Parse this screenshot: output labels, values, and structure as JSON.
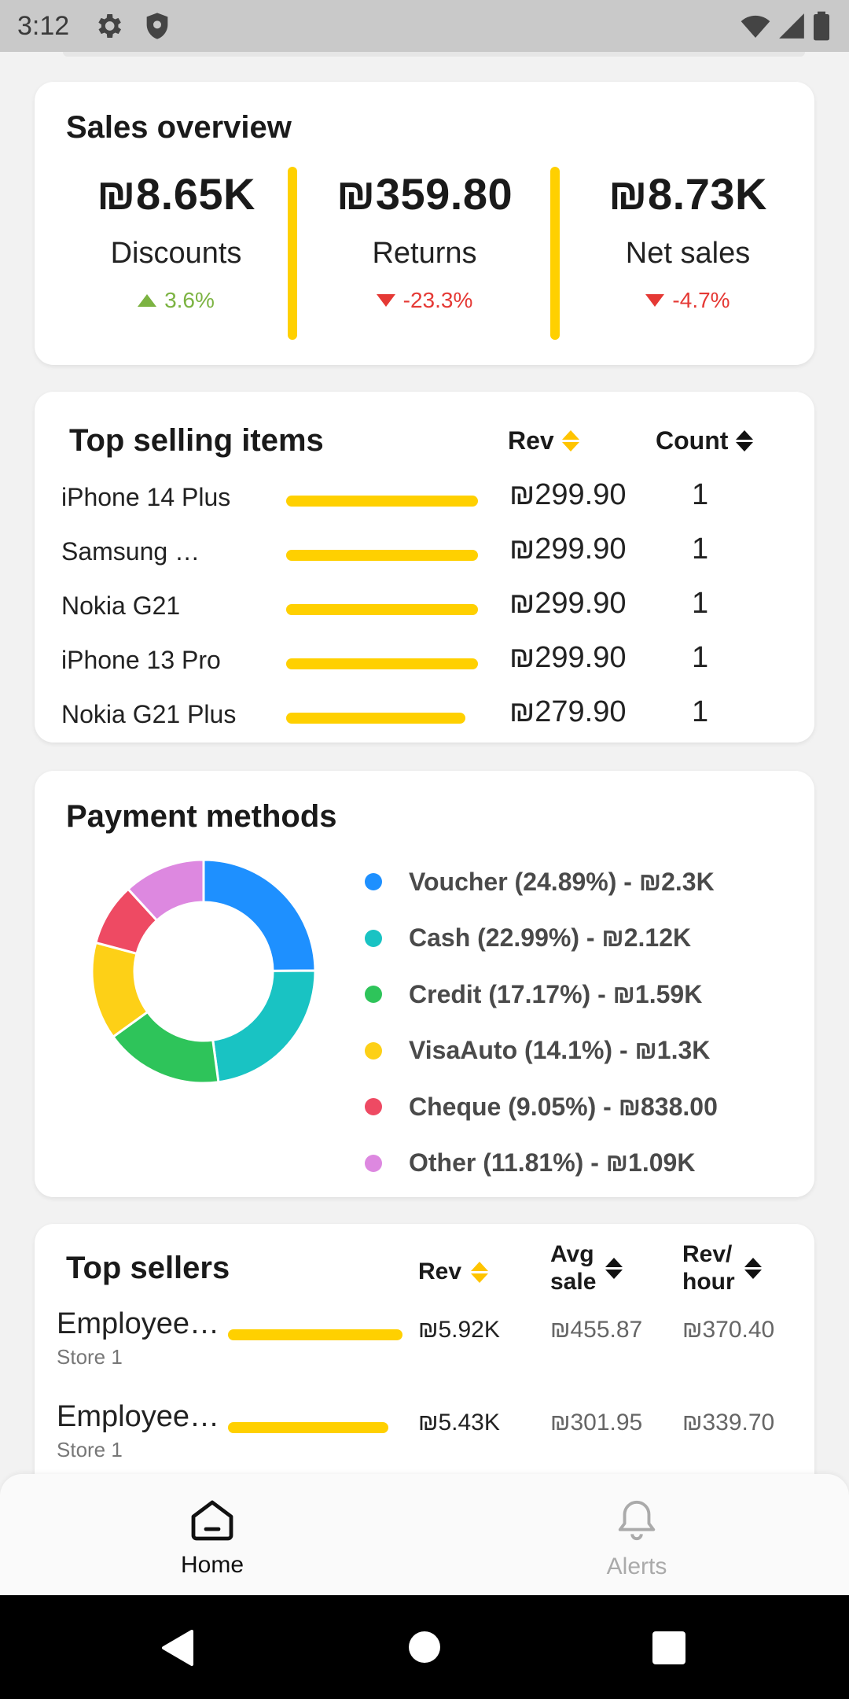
{
  "status_bar": {
    "time": "3:12",
    "icons": [
      "gear-icon",
      "shield-icon",
      "wifi-icon",
      "signal-icon",
      "battery-icon"
    ]
  },
  "sales_overview": {
    "title": "Sales overview",
    "metrics": [
      {
        "value": "₪8.65K",
        "label": "Discounts",
        "change": "3.6%",
        "direction": "up"
      },
      {
        "value": "₪359.80",
        "label": "Returns",
        "change": "-23.3%",
        "direction": "down"
      },
      {
        "value": "₪8.73K",
        "label": "Net sales",
        "change": "-4.7%",
        "direction": "down"
      }
    ]
  },
  "top_selling": {
    "title": "Top selling items",
    "col_rev": "Rev",
    "col_count": "Count",
    "items": [
      {
        "name": "iPhone 14 Plus",
        "rev": "₪299.90",
        "count": "1",
        "share": 1.0
      },
      {
        "name": "Samsung …",
        "rev": "₪299.90",
        "count": "1",
        "share": 1.0
      },
      {
        "name": "Nokia G21",
        "rev": "₪299.90",
        "count": "1",
        "share": 1.0
      },
      {
        "name": "iPhone 13 Pro",
        "rev": "₪299.90",
        "count": "1",
        "share": 1.0
      },
      {
        "name": "Nokia G21 Plus",
        "rev": "₪279.90",
        "count": "1",
        "share": 0.933
      }
    ]
  },
  "payment_methods": {
    "title": "Payment methods",
    "methods": [
      {
        "label": "Voucher (24.89%) - ₪2.3K",
        "percent": 24.89,
        "color": "#1e90ff"
      },
      {
        "label": "Cash (22.99%) - ₪2.12K",
        "percent": 22.99,
        "color": "#19c3c3"
      },
      {
        "label": "Credit (17.17%) - ₪1.59K",
        "percent": 17.17,
        "color": "#2ec45a"
      },
      {
        "label": "VisaAuto (14.1%) - ₪1.3K",
        "percent": 14.1,
        "color": "#fdd017"
      },
      {
        "label": "Cheque (9.05%) - ₪838.00",
        "percent": 9.05,
        "color": "#ee4a63"
      },
      {
        "label": "Other (11.81%) - ₪1.09K",
        "percent": 11.81,
        "color": "#dd88e0"
      }
    ]
  },
  "top_sellers": {
    "title": "Top sellers",
    "col_rev": "Rev",
    "col_avg_line1": "Avg",
    "col_avg_line2": "sale",
    "col_rph_line1": "Rev/",
    "col_rph_line2": "hour",
    "sellers": [
      {
        "name": "Employee…",
        "store": "Store 1",
        "rev": "₪5.92K",
        "avg": "₪455.87",
        "rph": "₪370.40",
        "share": 1.0
      },
      {
        "name": "Employee…",
        "store": "Store 1",
        "rev": "₪5.43K",
        "avg": "₪301.95",
        "rph": "₪339.70",
        "share": 0.917
      }
    ]
  },
  "bottom_nav": {
    "items": [
      {
        "label": "Home",
        "icon": "home-icon",
        "active": true
      },
      {
        "label": "Alerts",
        "icon": "bell-icon",
        "active": false
      }
    ]
  },
  "accent_color": "#ffd000"
}
